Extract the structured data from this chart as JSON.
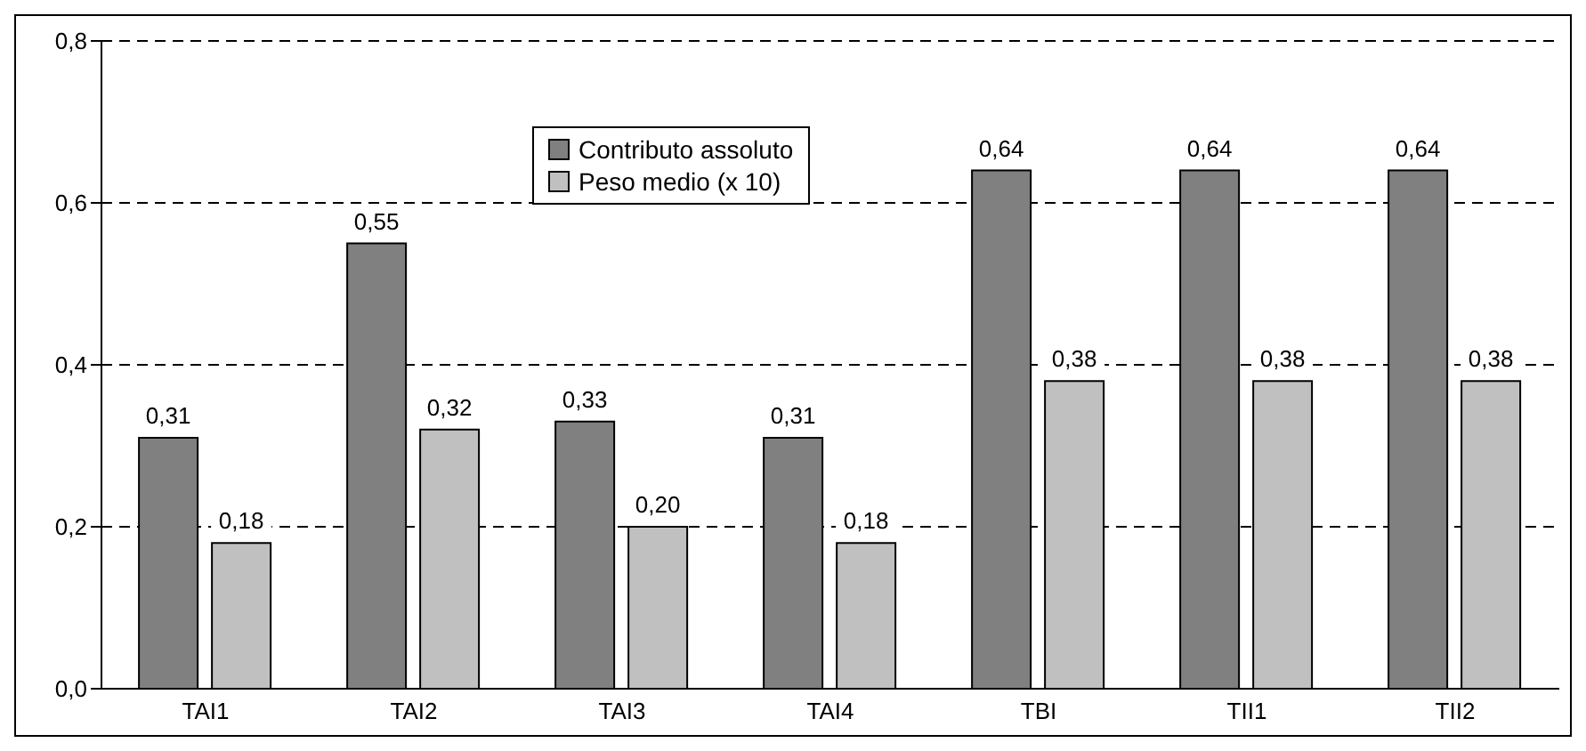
{
  "chart_data": {
    "type": "bar",
    "categories": [
      "TAI1",
      "TAI2",
      "TAI3",
      "TAI4",
      "TBI",
      "TII1",
      "TII2"
    ],
    "series": [
      {
        "name": "Contributo assoluto",
        "color": "#808080",
        "values": [
          0.31,
          0.55,
          0.33,
          0.31,
          0.64,
          0.64,
          0.64
        ],
        "value_labels": [
          "0,31",
          "0,55",
          "0,33",
          "0,31",
          "0,64",
          "0,64",
          "0,64"
        ]
      },
      {
        "name": "Peso medio (x 10)",
        "color": "#c0c0c0",
        "values": [
          0.18,
          0.32,
          0.2,
          0.18,
          0.38,
          0.38,
          0.38
        ],
        "value_labels": [
          "0,18",
          "0,32",
          "0,20",
          "0,18",
          "0,38",
          "0,38",
          "0,38"
        ]
      }
    ],
    "ylim": [
      0,
      0.8
    ],
    "yticks": [
      {
        "value": 0,
        "label": "0,0"
      },
      {
        "value": 0.2,
        "label": "0,2"
      },
      {
        "value": 0.4,
        "label": "0,4"
      },
      {
        "value": 0.6,
        "label": "0,6"
      },
      {
        "value": 0.8,
        "label": "0,8"
      }
    ],
    "grid": "y",
    "legend": "top"
  }
}
